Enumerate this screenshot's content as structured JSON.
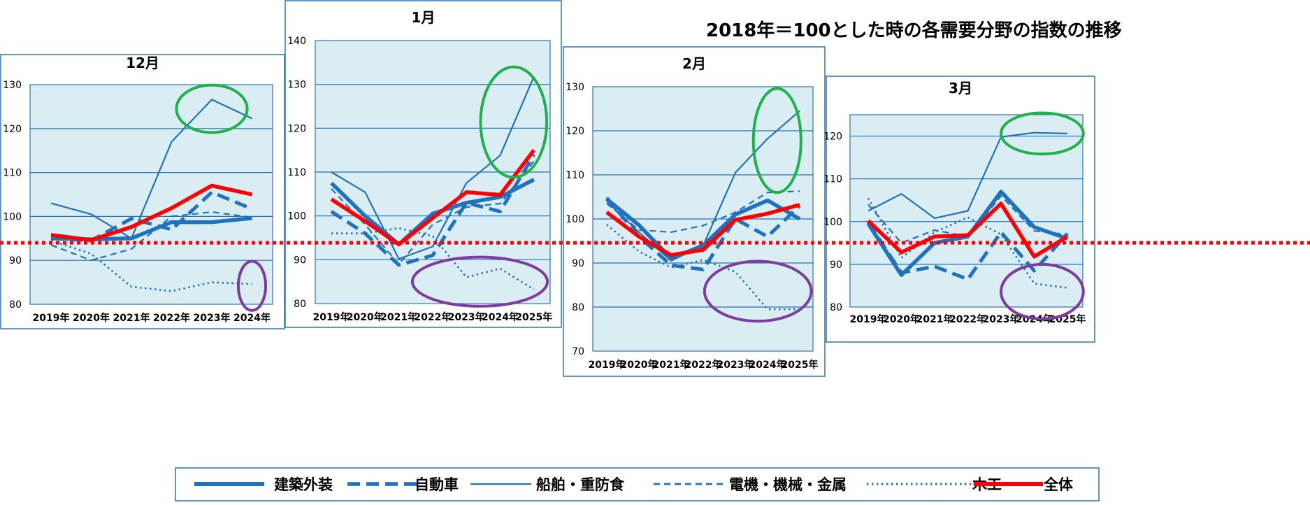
{
  "title": "2018年＝100とした時の各需要分野の指数の推移",
  "colors": {
    "blue": "#1f72c0",
    "red": "#ff0000",
    "plot_bg": "#daedf3",
    "frame": "#2e74b5",
    "grid": "#1f72c0",
    "baseline": "#ff0000"
  },
  "legend": [
    {
      "name": "建築外装",
      "style": "thick"
    },
    {
      "name": "自動車",
      "style": "dash"
    },
    {
      "name": "船舶・重防食",
      "style": "thin"
    },
    {
      "name": "電機・機械・金属",
      "style": "shortdash"
    },
    {
      "name": "木工",
      "style": "dot"
    },
    {
      "name": "全体",
      "style": "red"
    }
  ],
  "baseline_value": 94,
  "chart_data": [
    {
      "type": "line",
      "title": "12月",
      "categories": [
        "2019年",
        "2020年",
        "2021年",
        "2022年",
        "2023年",
        "2024年"
      ],
      "ylim": [
        80,
        130
      ],
      "yticks": [
        80,
        90,
        100,
        110,
        120,
        130
      ],
      "series": [
        {
          "name": "建築外装",
          "values": [
            95,
            94.8,
            95,
            98.7,
            98.7,
            99.6
          ]
        },
        {
          "name": "自動車",
          "values": [
            95,
            94.5,
            99.5,
            97,
            105.5,
            101.7
          ]
        },
        {
          "name": "船舶・重防食",
          "values": [
            103,
            100.5,
            95,
            117,
            126.6,
            122.3
          ]
        },
        {
          "name": "電機・機械・金属",
          "values": [
            93.5,
            90,
            92.6,
            100,
            101,
            99.8
          ]
        },
        {
          "name": "木工",
          "values": [
            94.5,
            91.5,
            84,
            83,
            85,
            84.6
          ]
        },
        {
          "name": "全体",
          "values": [
            95.8,
            94.6,
            97.6,
            101.9,
            107,
            105
          ]
        }
      ],
      "annotations": [
        {
          "shape": "ellipse",
          "color": "#1fb14c",
          "cx": 4,
          "cy": 124.5,
          "rx": 0.88,
          "ry": 5.4
        },
        {
          "shape": "ellipse",
          "color": "#7d3d9e",
          "cx": 5,
          "cy": 84.2,
          "rx": 0.34,
          "ry": 5.6
        }
      ]
    },
    {
      "type": "line",
      "title": "1月",
      "categories": [
        "2019年",
        "2020年",
        "2021年",
        "2022年",
        "2023年",
        "2024年",
        "2025年"
      ],
      "ylim": [
        80,
        140
      ],
      "yticks": [
        80,
        90,
        100,
        110,
        120,
        130,
        140
      ],
      "series": [
        {
          "name": "建築外装",
          "values": [
            107.5,
            100,
            93.5,
            100.5,
            103,
            104.3,
            108.3
          ]
        },
        {
          "name": "自動車",
          "values": [
            101,
            96,
            88.8,
            91,
            103,
            101,
            114
          ]
        },
        {
          "name": "船舶・重防食",
          "values": [
            110,
            105.4,
            90.2,
            93,
            107.5,
            113.8,
            131.8
          ]
        },
        {
          "name": "電機・機械・金属",
          "values": [
            106.2,
            98,
            89,
            98,
            102,
            102.8,
            112.5
          ]
        },
        {
          "name": "木工",
          "values": [
            96,
            96,
            97.2,
            95.4,
            86,
            88,
            83.2
          ]
        },
        {
          "name": "全体",
          "values": [
            103.8,
            98.8,
            93.5,
            99.5,
            105.4,
            104.8,
            115
          ]
        }
      ],
      "annotations": [
        {
          "shape": "ellipse",
          "color": "#1fb14c",
          "cx": 5.4,
          "cy": 121.4,
          "rx": 0.98,
          "ry": 12.6
        },
        {
          "shape": "ellipse",
          "color": "#7d3d9e",
          "cx": 4.4,
          "cy": 85,
          "rx": 2.0,
          "ry": 5.6
        }
      ]
    },
    {
      "type": "line",
      "title": "2月",
      "categories": [
        "2019年",
        "2020年",
        "2021年",
        "2022年",
        "2023年",
        "2024年",
        "2025年"
      ],
      "ylim": [
        70,
        130
      ],
      "yticks": [
        70,
        80,
        90,
        100,
        110,
        120,
        130
      ],
      "series": [
        {
          "name": "建築外装",
          "values": [
            104.5,
            98.6,
            91,
            94,
            101,
            104.2,
            100
          ]
        },
        {
          "name": "自動車",
          "values": [
            104.8,
            96,
            89.5,
            88.5,
            100,
            96,
            103
          ]
        },
        {
          "name": "船舶・重防食",
          "values": [
            104,
            97,
            90.5,
            94,
            110.5,
            118.2,
            124.5
          ]
        },
        {
          "name": "電機・機械・金属",
          "values": [
            103.5,
            97.5,
            97,
            98.5,
            101.5,
            106,
            106.3
          ]
        },
        {
          "name": "木工",
          "values": [
            98.7,
            92.6,
            89,
            90.7,
            88,
            79.5,
            79.5
          ]
        },
        {
          "name": "全体",
          "values": [
            101.5,
            96,
            91.8,
            93,
            99.8,
            101.2,
            103.2
          ]
        }
      ],
      "annotations": [
        {
          "shape": "ellipse",
          "color": "#1fb14c",
          "cx": 5.3,
          "cy": 117.8,
          "rx": 0.74,
          "ry": 11.8
        },
        {
          "shape": "ellipse",
          "color": "#7d3d9e",
          "cx": 4.7,
          "cy": 83.6,
          "rx": 1.66,
          "ry": 6.8
        }
      ]
    },
    {
      "type": "line",
      "title": "3月",
      "categories": [
        "2019年",
        "2020年",
        "2021年",
        "2022年",
        "2023年",
        "2024年",
        "2025年"
      ],
      "ylim": [
        80,
        125
      ],
      "yticks": [
        80,
        90,
        100,
        110,
        120
      ],
      "series": [
        {
          "name": "建築外装",
          "values": [
            99.5,
            87.5,
            95,
            96.5,
            107,
            98.7,
            96
          ]
        },
        {
          "name": "自動車",
          "values": [
            99.8,
            88,
            89.5,
            86.5,
            97.5,
            88.5,
            97.2
          ]
        },
        {
          "name": "船舶・重防食",
          "values": [
            102.5,
            106.5,
            100.8,
            102.5,
            119.8,
            120.8,
            120.6
          ]
        },
        {
          "name": "電機・機械・金属",
          "values": [
            104,
            95,
            98,
            96.5,
            106,
            97.8,
            97
          ]
        },
        {
          "name": "木工",
          "values": [
            105.5,
            91.5,
            97.5,
            101,
            97,
            85.5,
            84.5
          ]
        },
        {
          "name": "全体",
          "values": [
            100.2,
            92.8,
            96.5,
            96.8,
            104.2,
            91.8,
            96.5
          ]
        }
      ],
      "annotations": [
        {
          "shape": "ellipse",
          "color": "#1fb14c",
          "cx": 5.24,
          "cy": 120.6,
          "rx": 1.24,
          "ry": 4.8
        },
        {
          "shape": "ellipse",
          "color": "#7d3d9e",
          "cx": 5.24,
          "cy": 83.6,
          "rx": 1.24,
          "ry": 6.4
        }
      ]
    }
  ]
}
